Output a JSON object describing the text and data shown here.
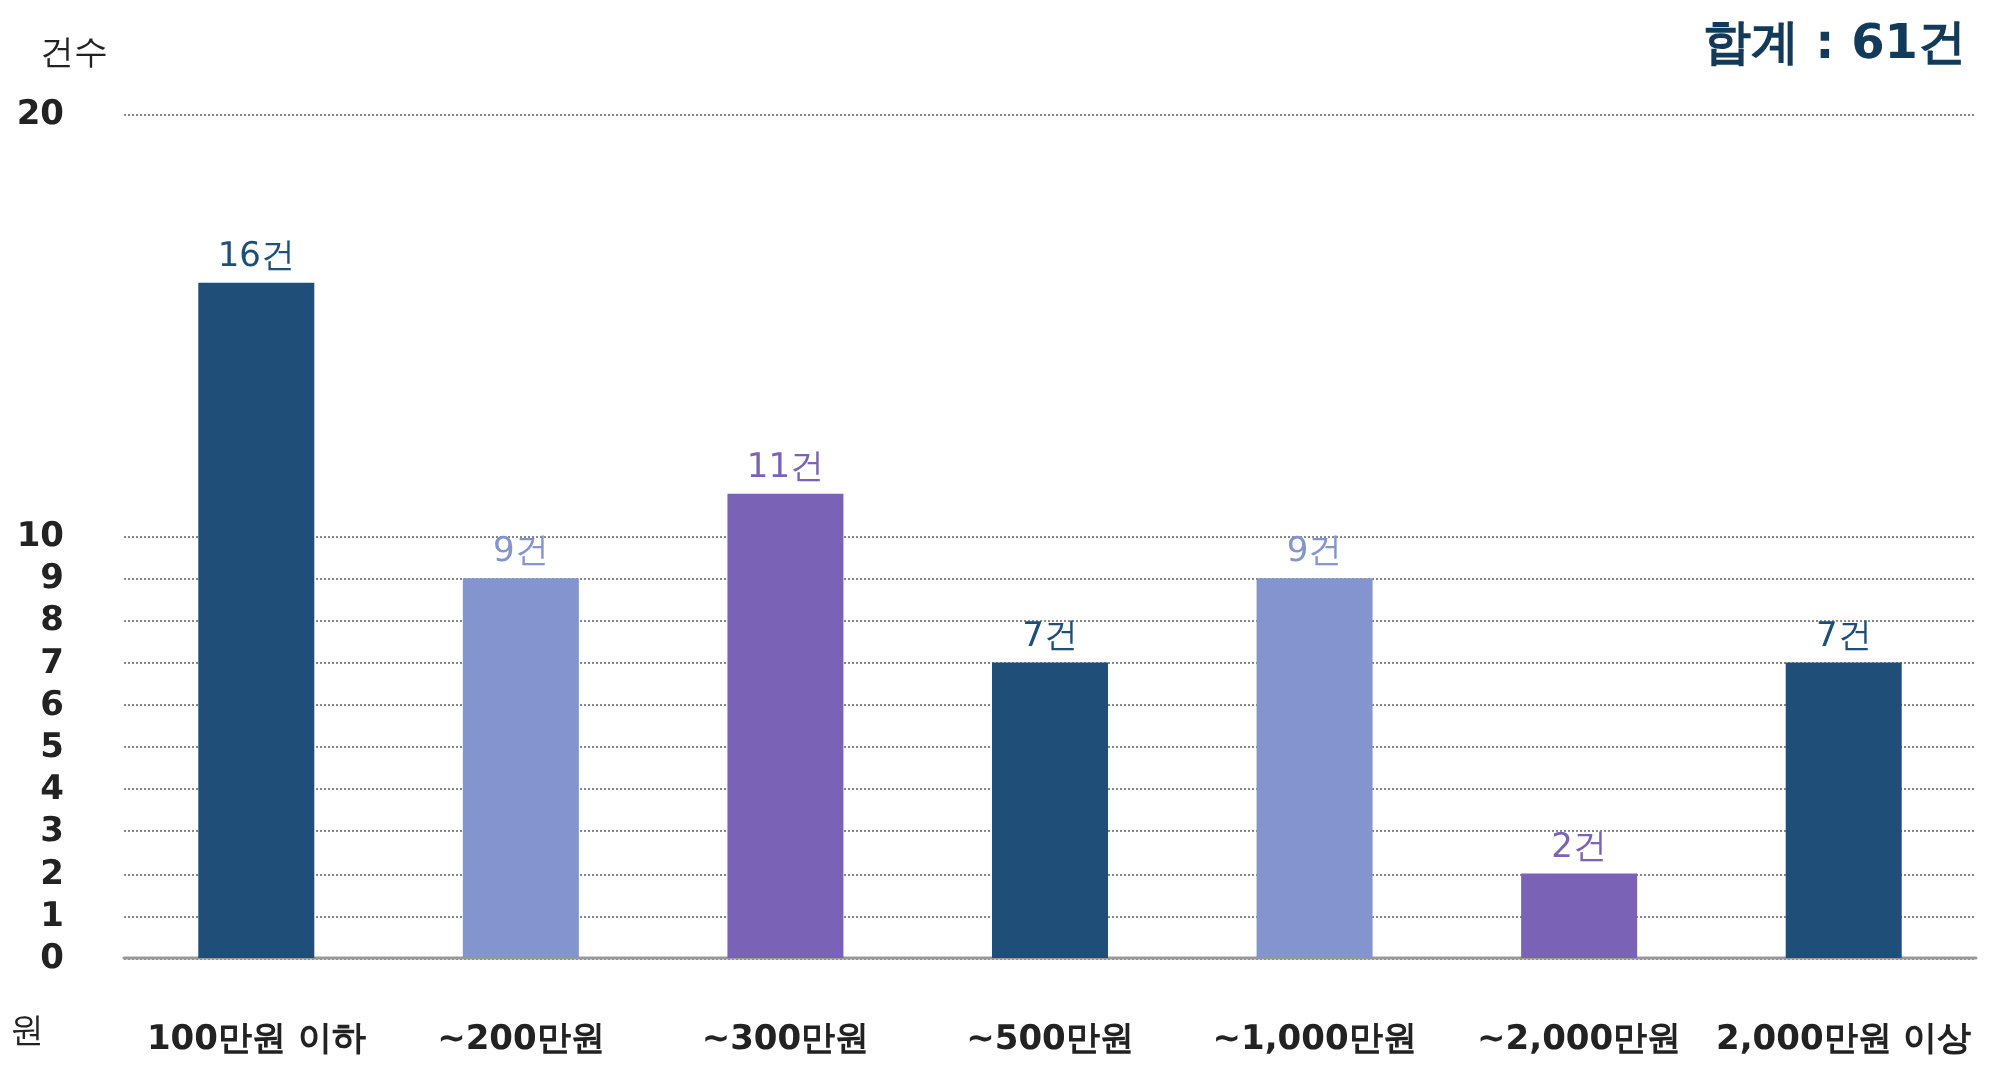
{
  "chart_data": {
    "type": "bar",
    "title": "합계 : 61건",
    "ylabel": "건수",
    "xlabel": "원",
    "categories": [
      "100만원 이하",
      "~200만원",
      "~300만원",
      "~500만원",
      "~1,000만원",
      "~2,000만원",
      "2,000만원 이상"
    ],
    "values": [
      16,
      9,
      11,
      7,
      9,
      2,
      7
    ],
    "value_labels": [
      "16건",
      "9건",
      "11건",
      "7건",
      "9건",
      "2건",
      "7건"
    ],
    "colors": [
      "#1f4f78",
      "#8494cf",
      "#7a62b6",
      "#1f4f78",
      "#8494cf",
      "#7a62b6",
      "#1f4f78"
    ],
    "ylim": [
      0,
      20
    ],
    "yticks": [
      0,
      1,
      2,
      3,
      4,
      5,
      6,
      7,
      8,
      9,
      10,
      20
    ],
    "grid": "y"
  }
}
